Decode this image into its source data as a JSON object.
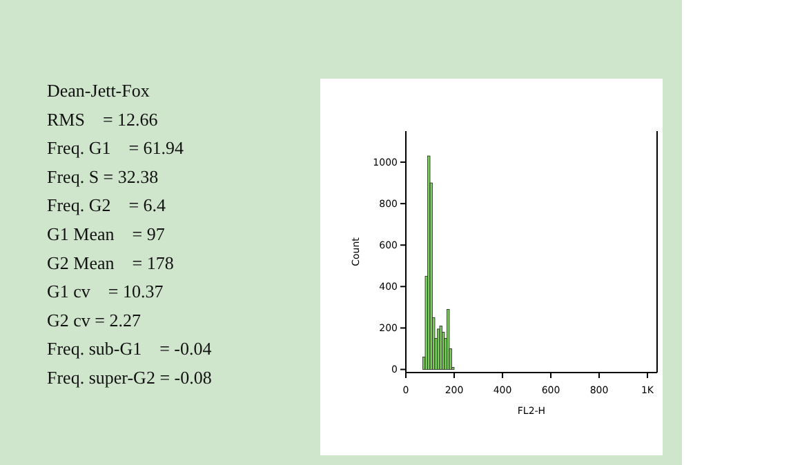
{
  "chart_data": {
    "type": "histogram",
    "xlabel": "FL2-H",
    "ylabel": "Count",
    "bins": [
      70,
      80,
      90,
      100,
      110,
      120,
      130,
      140,
      150,
      160,
      170,
      180,
      190,
      200
    ],
    "values": [
      60,
      450,
      1030,
      900,
      250,
      150,
      195,
      210,
      180,
      150,
      290,
      100,
      10
    ],
    "color": "#7ccf5a",
    "xlim": [
      0,
      1040
    ],
    "xticks": [
      0,
      200,
      400,
      600,
      800,
      {
        "value": 1000,
        "label": "1K"
      }
    ],
    "ylim": [
      -15,
      1150
    ],
    "yticks": [
      0,
      200,
      400,
      600,
      800,
      1000
    ],
    "grid": false,
    "annotations": [
      "Dean-Jett-Fox",
      "RMS    = 12.66",
      "Freq. G1    = 61.94",
      "Freq. S = 32.38",
      "Freq. G2    = 6.4",
      "G1 Mean    = 97",
      "G2 Mean    = 178",
      "G1 cv    = 10.37",
      "G2 cv = 2.27",
      "Freq. sub-G1    = -0.04",
      "Freq. super-G2 = -0.08"
    ]
  }
}
